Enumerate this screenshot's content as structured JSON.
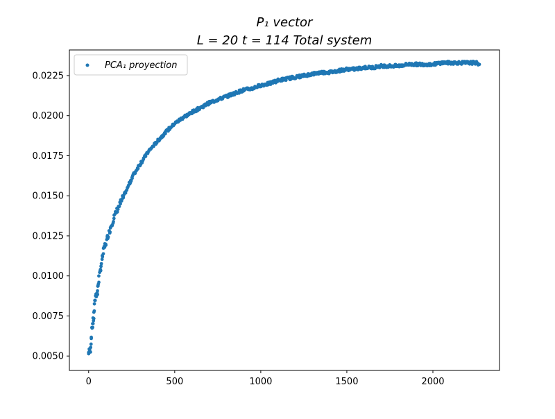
{
  "chart_data": {
    "type": "scatter",
    "title_lines": [
      "P₁ vector",
      "L = 20 t = 114 Total system"
    ],
    "xlabel": "",
    "ylabel": "",
    "xlim": [
      -112,
      2387
    ],
    "ylim": [
      0.0041,
      0.0241
    ],
    "xticks": [
      0,
      500,
      1000,
      1500,
      2000
    ],
    "yticks": [
      0.005,
      0.0075,
      0.01,
      0.0125,
      0.015,
      0.0175,
      0.02,
      0.0225
    ],
    "xtick_labels": [
      "0",
      "500",
      "1000",
      "1500",
      "2000"
    ],
    "ytick_labels": [
      "0.0050",
      "0.0075",
      "0.0100",
      "0.0125",
      "0.0150",
      "0.0175",
      "0.0200",
      "0.0225"
    ],
    "legend": {
      "label": "PCA₁ proyection",
      "placement": "upper-left"
    },
    "grid": false,
    "marker_color": "#1f77b4",
    "series": [
      {
        "name": "PCA₁ proyection",
        "x": [
          0,
          10,
          20,
          30,
          40,
          50,
          60,
          75,
          90,
          110,
          130,
          150,
          175,
          200,
          230,
          260,
          300,
          350,
          400,
          450,
          500,
          550,
          600,
          650,
          700,
          750,
          800,
          850,
          900,
          950,
          1000,
          1050,
          1100,
          1150,
          1200,
          1250,
          1300,
          1350,
          1400,
          1450,
          1500,
          1550,
          1600,
          1650,
          1700,
          1750,
          1800,
          1850,
          1900,
          1950,
          2000,
          2050,
          2100,
          2150,
          2200,
          2250,
          2270
        ],
        "y": [
          0.0052,
          0.0054,
          0.0068,
          0.0074,
          0.0088,
          0.0089,
          0.0099,
          0.0108,
          0.0117,
          0.0124,
          0.0131,
          0.0137,
          0.0143,
          0.0149,
          0.0156,
          0.0163,
          0.017,
          0.0178,
          0.0184,
          0.019,
          0.0195,
          0.0199,
          0.0202,
          0.0205,
          0.0208,
          0.021,
          0.0212,
          0.0214,
          0.0216,
          0.0217,
          0.0219,
          0.022,
          0.0222,
          0.0223,
          0.0224,
          0.0225,
          0.0226,
          0.0227,
          0.0227,
          0.0228,
          0.0229,
          0.0229,
          0.023,
          0.023,
          0.0231,
          0.0231,
          0.0231,
          0.0232,
          0.0232,
          0.0232,
          0.0232,
          0.0233,
          0.0233,
          0.0233,
          0.0233,
          0.0233,
          0.0232
        ]
      }
    ]
  }
}
